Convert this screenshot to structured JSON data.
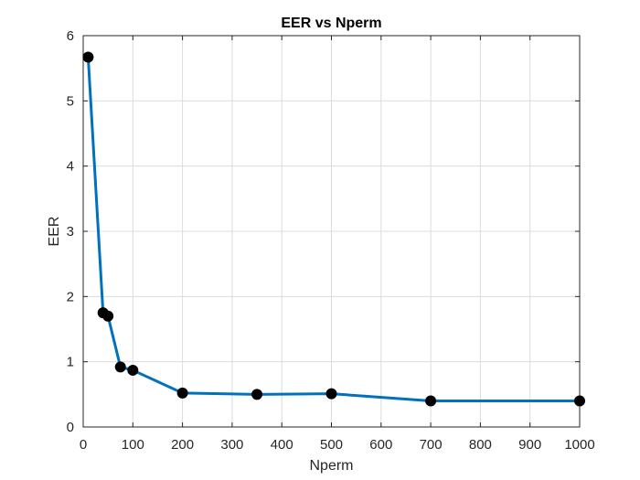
{
  "chart_data": {
    "type": "line",
    "title": "EER vs Nperm",
    "xlabel": "Nperm",
    "ylabel": "EER",
    "xlim": [
      0,
      1000
    ],
    "ylim": [
      0,
      6
    ],
    "xticks": [
      0,
      100,
      200,
      300,
      400,
      500,
      600,
      700,
      800,
      900,
      1000
    ],
    "yticks": [
      0,
      1,
      2,
      3,
      4,
      5,
      6
    ],
    "xtick_labels": [
      "0",
      "100",
      "200",
      "300",
      "400",
      "500",
      "600",
      "700",
      "800",
      "900",
      "1000"
    ],
    "ytick_labels": [
      "0",
      "1",
      "2",
      "3",
      "4",
      "5",
      "6"
    ],
    "grid": true,
    "series": [
      {
        "x": [
          10,
          40,
          50,
          75,
          100,
          200,
          350,
          500,
          700,
          1000
        ],
        "y": [
          5.67,
          1.75,
          1.7,
          0.92,
          0.87,
          0.52,
          0.5,
          0.51,
          0.4,
          0.4
        ],
        "line_color": "#0072BD",
        "marker_color": "#000000"
      }
    ]
  }
}
